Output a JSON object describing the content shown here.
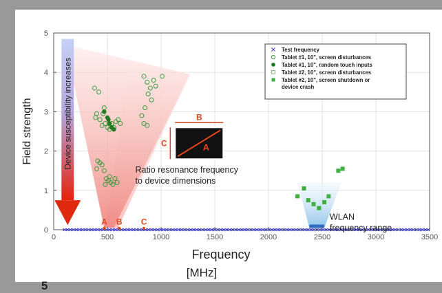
{
  "figure_number": "5",
  "chart_data": {
    "type": "scatter",
    "xlabel": "Frequency",
    "xunit": "[MHz]",
    "ylabel": "Field strength",
    "xlim": [
      0,
      3500
    ],
    "ylim": [
      0,
      5
    ],
    "xticks": [
      0,
      500,
      1000,
      1500,
      2000,
      2500,
      3000,
      3500
    ],
    "yticks": [
      0,
      1,
      2,
      3,
      4,
      5
    ],
    "grid": true,
    "legend_position": "top-right",
    "series": [
      {
        "name": "Test frequency",
        "marker": "x",
        "color": "#3a3ad6",
        "x_range": [
          100,
          3500
        ],
        "y": 0
      },
      {
        "name": "Tablet #1, 10\", screen disturbances",
        "marker": "open-circle",
        "color": "#3a9a3a",
        "points": [
          [
            380,
            3.6
          ],
          [
            420,
            3.5
          ],
          [
            400,
            2.95
          ],
          [
            430,
            2.8
          ],
          [
            450,
            2.65
          ],
          [
            460,
            2.95
          ],
          [
            470,
            3.1
          ],
          [
            480,
            2.7
          ],
          [
            500,
            2.6
          ],
          [
            520,
            2.55
          ],
          [
            540,
            2.7
          ],
          [
            560,
            2.6
          ],
          [
            580,
            2.75
          ],
          [
            600,
            2.8
          ],
          [
            620,
            2.7
          ],
          [
            390,
            2.85
          ],
          [
            410,
            1.75
          ],
          [
            430,
            1.7
          ],
          [
            450,
            1.65
          ],
          [
            470,
            1.5
          ],
          [
            490,
            1.3
          ],
          [
            510,
            1.25
          ],
          [
            530,
            1.2
          ],
          [
            550,
            1.15
          ],
          [
            570,
            1.3
          ],
          [
            590,
            1.2
          ],
          [
            400,
            1.55
          ],
          [
            480,
            1.15
          ],
          [
            520,
            1.35
          ],
          [
            840,
            3.9
          ],
          [
            870,
            3.75
          ],
          [
            900,
            3.6
          ],
          [
            930,
            3.8
          ],
          [
            950,
            3.65
          ],
          [
            880,
            3.45
          ],
          [
            910,
            3.3
          ],
          [
            850,
            3.1
          ],
          [
            820,
            2.9
          ],
          [
            840,
            2.7
          ],
          [
            870,
            2.65
          ],
          [
            1010,
            3.9
          ]
        ]
      },
      {
        "name": "Tablet #1, 10\", random touch inputs",
        "marker": "filled-circle",
        "color": "#1f7a1f",
        "points": [
          [
            470,
            3.0
          ],
          [
            500,
            2.85
          ],
          [
            520,
            2.7
          ],
          [
            540,
            2.6
          ],
          [
            560,
            2.55
          ],
          [
            510,
            2.8
          ]
        ]
      },
      {
        "name": "Tablet #2, 10\", screen disturbances",
        "marker": "open-square",
        "color": "#7ac07a",
        "points": []
      },
      {
        "name": "Tablet #2, 10\", screen shutdown or device crash",
        "marker": "filled-square",
        "color": "#3fb03f",
        "points": [
          [
            2270,
            0.85
          ],
          [
            2330,
            1.05
          ],
          [
            2370,
            0.75
          ],
          [
            2420,
            0.65
          ],
          [
            2470,
            0.55
          ],
          [
            2520,
            0.7
          ],
          [
            2560,
            0.85
          ],
          [
            2650,
            1.5
          ],
          [
            2690,
            1.55
          ]
        ]
      }
    ],
    "annotations": {
      "susceptibility": "Device susceptibility increases",
      "ratio_line1": "Ratio resonance frequency",
      "ratio_line2": "to device dimensions",
      "wlan_line1": "WLAN",
      "wlan_line2": "frequency range",
      "markers": [
        {
          "label": "A",
          "x": 470
        },
        {
          "label": "B",
          "x": 610
        },
        {
          "label": "C",
          "x": 840
        }
      ],
      "device_box": {
        "top": "B",
        "left": "C",
        "diagonal": "A"
      }
    },
    "colors": {
      "red_cone": "#f3a3a0",
      "blue_cone": "#a9d0ef",
      "arrow_top": "#8fa3e0",
      "arrow_bottom": "#e02a10",
      "label_red": "#e0451c",
      "axis": "#555555"
    }
  }
}
